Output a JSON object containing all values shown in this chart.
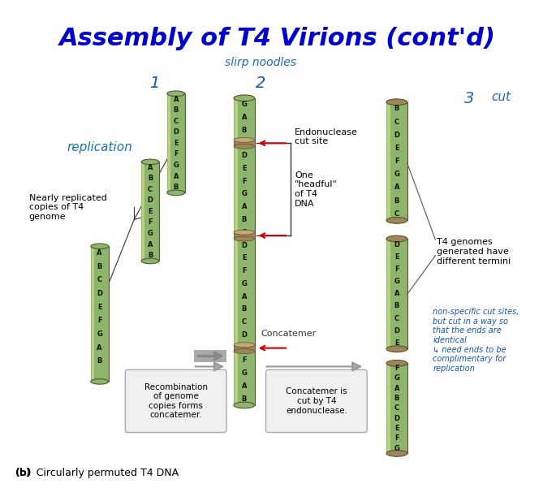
{
  "title": "Assembly of T4 Virions (cont'd)",
  "title_color": "#0000CC",
  "title_fontsize": 22,
  "bg_color": "#FFFFFF",
  "subtitle_label": "(b)  Circularly permuted T4 DNA",
  "handwritten_1": "1",
  "handwritten_replication": "replication",
  "handwritten_slurp": "slirp noodles",
  "handwritten_2": "2",
  "handwritten_3": "3",
  "handwritten_cut": "cut",
  "label_nearly": "Nearly replicated\ncopies of T4\ngenome",
  "label_endonuclease": "Endonuclease\ncut site",
  "label_one_headful": "One\n\"headful\"\nof T4\nDNA",
  "label_concatemer": "Concatemer",
  "label_recombination": "Recombination\nof genome\ncopies forms\nconcatemer.",
  "label_concatemer_cut": "Concatemer is\ncut by T4\nendonuclease.",
  "label_t4_genomes": "T4 genomes\ngenerated have\ndifferent termini",
  "label_nonspecific": "non-specific cut sites,\nbut cut in a way so\nthat the ends are\nidentical\n↳ need ends to be\ncomplimentary for\nreplication",
  "cylinder_green": "#8DB56C",
  "cylinder_green_light": "#C5E08A",
  "cylinder_green_dark": "#6A8C4A",
  "cylinder_brown": "#A0845A",
  "cylinder_brown_light": "#C8A878",
  "cylinder_brown_dark": "#7A5C30",
  "arrow_gray": "#888888",
  "red_arrow": "#CC0000",
  "line_color": "#333333"
}
